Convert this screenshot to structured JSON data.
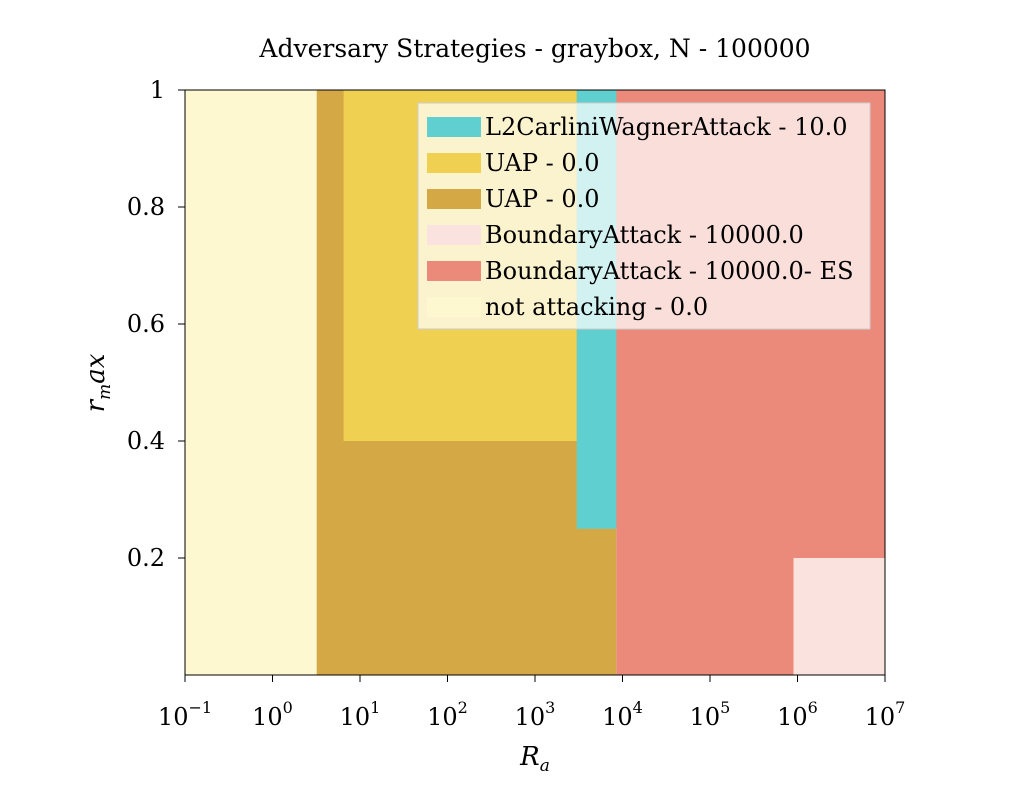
{
  "chart_data": {
    "type": "heatmap",
    "title": "Adversary Strategies - graybox, N - 100000",
    "xlabel": "R_a",
    "ylabel": "r_m ax",
    "x_scale": "log",
    "xlim": [
      0.1,
      10000000
    ],
    "ylim": [
      0.0,
      1.0
    ],
    "x_ticks": [
      {
        "value": 0.1,
        "base": "10",
        "exp": "−1"
      },
      {
        "value": 1,
        "base": "10",
        "exp": "0"
      },
      {
        "value": 10,
        "base": "10",
        "exp": "1"
      },
      {
        "value": 100,
        "base": "10",
        "exp": "2"
      },
      {
        "value": 1000,
        "base": "10",
        "exp": "3"
      },
      {
        "value": 10000,
        "base": "10",
        "exp": "4"
      },
      {
        "value": 100000,
        "base": "10",
        "exp": "5"
      },
      {
        "value": 1000000,
        "base": "10",
        "exp": "6"
      },
      {
        "value": 10000000,
        "base": "10",
        "exp": "7"
      }
    ],
    "y_ticks": [
      {
        "value": 0.2,
        "label": "0.2"
      },
      {
        "value": 0.4,
        "label": "0.4"
      },
      {
        "value": 0.6,
        "label": "0.6"
      },
      {
        "value": 0.8,
        "label": "0.8"
      },
      {
        "value": 1.0,
        "label": "1"
      }
    ],
    "legend_position": "top-right",
    "series": [
      {
        "name": "L2CarliniWagnerAttack - 10.0",
        "color": "#5fcfcf"
      },
      {
        "name": "UAP - 0.0",
        "color": "#f0d050"
      },
      {
        "name": "UAP - 0.0",
        "color": "#d4a845"
      },
      {
        "name": "BoundaryAttack - 10000.0",
        "color": "#fae3df"
      },
      {
        "name": "BoundaryAttack - 10000.0- ES",
        "color": "#eb8a7a"
      },
      {
        "name": "not attacking - 0.0",
        "color": "#fdf8d0"
      }
    ],
    "regions": [
      {
        "series": 5,
        "x": [
          0.1,
          10
        ],
        "y": [
          0,
          1
        ]
      },
      {
        "series": 2,
        "x": [
          3.2,
          8500
        ],
        "y": [
          0,
          1
        ]
      },
      {
        "series": 1,
        "x": [
          6.5,
          3000
        ],
        "y": [
          0.4,
          1
        ]
      },
      {
        "series": 0,
        "x": [
          3000,
          18000
        ],
        "y": [
          0.25,
          1
        ]
      },
      {
        "series": 4,
        "x": [
          8500,
          10000000
        ],
        "y": [
          0,
          1
        ]
      },
      {
        "series": 3,
        "x": [
          900000,
          10000000
        ],
        "y": [
          0,
          0.2
        ]
      }
    ]
  }
}
